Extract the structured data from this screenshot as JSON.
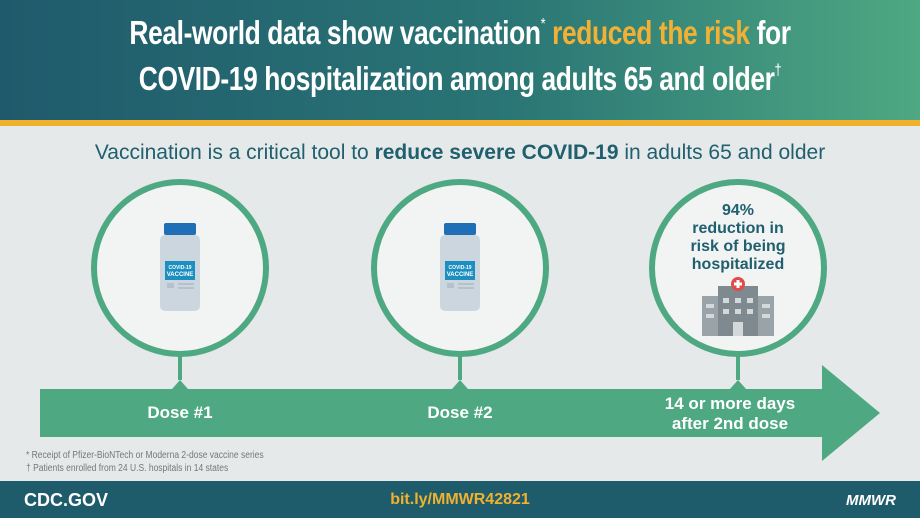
{
  "header": {
    "line1_pre": "Real-world data show vaccination",
    "line1_mark": "*",
    "line1_highlight": "reduced the risk",
    "line1_post": "for",
    "line2": "COVID-19 hospitalization among adults 65 and older",
    "line2_mark": "†"
  },
  "subtitle": {
    "pre": "Vaccination is a critical tool to",
    "bold": "reduce severe COVID-19",
    "post": "in adults 65 and older"
  },
  "vial_label": [
    "COVID-19",
    "VACCINE"
  ],
  "result": {
    "lines": [
      "94%",
      "reduction in",
      "risk of being",
      "hospitalized"
    ],
    "icon": "hospital-icon"
  },
  "timeline": {
    "steps": [
      "Dose #1",
      "Dose #2"
    ],
    "final": [
      "14 or more days",
      "after 2nd dose"
    ]
  },
  "footnotes": [
    "* Receipt of Pfizer-BioNTech or Moderna 2-dose vaccine series",
    "† Patients enrolled from 24 U.S. hospitals in 14 states"
  ],
  "footer": {
    "left": "CDC.GOV",
    "center": "bit.ly/MMWR42821",
    "right": "MMWR"
  },
  "colors": {
    "teal": "#1f5c6b",
    "green": "#4ea882",
    "gold": "#f0b12e",
    "vial_blue": "#1e6fb5"
  }
}
